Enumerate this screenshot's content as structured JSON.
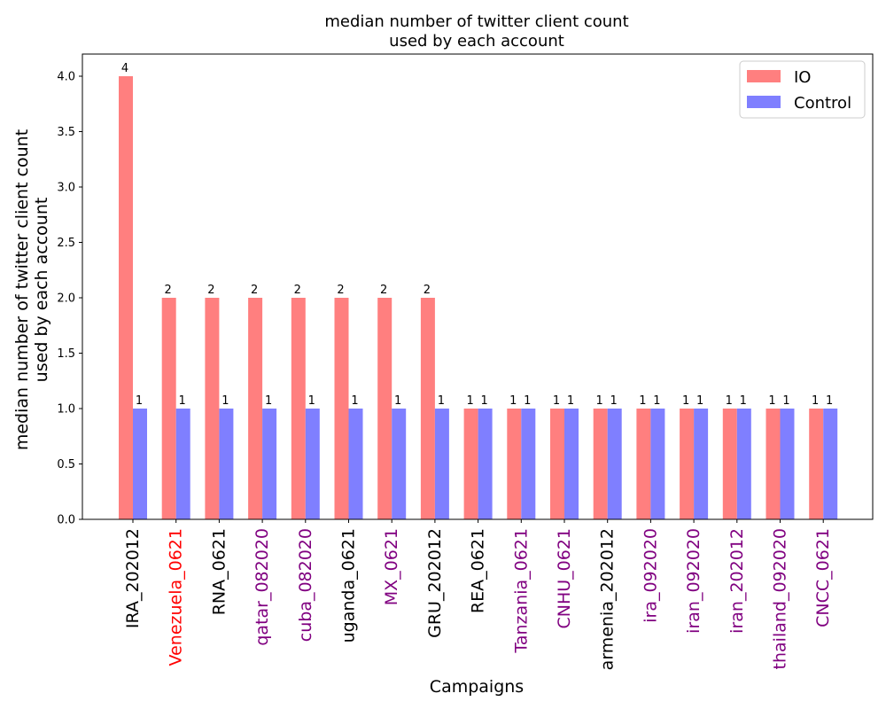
{
  "chart_data": {
    "type": "bar",
    "title_lines": [
      "median number of twitter client count",
      "used by each account"
    ],
    "xlabel": "Campaigns",
    "ylabel_lines": [
      "median number of twitter client count",
      "used by each account"
    ],
    "ylim": [
      0,
      4.2
    ],
    "yticks": [
      "0.0",
      "0.5",
      "1.0",
      "1.5",
      "2.0",
      "2.5",
      "3.0",
      "3.5",
      "4.0"
    ],
    "legend_position": "top-right",
    "categories": [
      "IRA_202012",
      "Venezuela_0621",
      "RNA_0621",
      "qatar_082020",
      "cuba_082020",
      "uganda_0621",
      "MX_0621",
      "GRU_202012",
      "REA_0621",
      "Tanzania_0621",
      "CNHU_0621",
      "armenia_202012",
      "ira_092020",
      "iran_092020",
      "iran_202012",
      "thailand_092020",
      "CNCC_0621"
    ],
    "category_colors": [
      "#000000",
      "#ff0000",
      "#000000",
      "#800080",
      "#800080",
      "#000000",
      "#800080",
      "#000000",
      "#000000",
      "#800080",
      "#800080",
      "#000000",
      "#800080",
      "#800080",
      "#800080",
      "#800080",
      "#800080"
    ],
    "series": [
      {
        "name": "IO",
        "color": "#ff7f7f",
        "values": [
          4,
          2,
          2,
          2,
          2,
          2,
          2,
          2,
          1,
          1,
          1,
          1,
          1,
          1,
          1,
          1,
          1
        ],
        "labels": [
          "4",
          "2",
          "2",
          "2",
          "2",
          "2",
          "2",
          "2",
          "1",
          "1",
          "1",
          "1",
          "1",
          "1",
          "1",
          "1",
          "1"
        ]
      },
      {
        "name": "Control",
        "color": "#7f7fff",
        "values": [
          1,
          1,
          1,
          1,
          1,
          1,
          1,
          1,
          1,
          1,
          1,
          1,
          1,
          1,
          1,
          1,
          1
        ],
        "labels": [
          "1",
          "1",
          "1",
          "1",
          "1",
          "1",
          "1",
          "1",
          "1",
          "1",
          "1",
          "1",
          "1",
          "1",
          "1",
          "1",
          "1"
        ]
      }
    ]
  }
}
